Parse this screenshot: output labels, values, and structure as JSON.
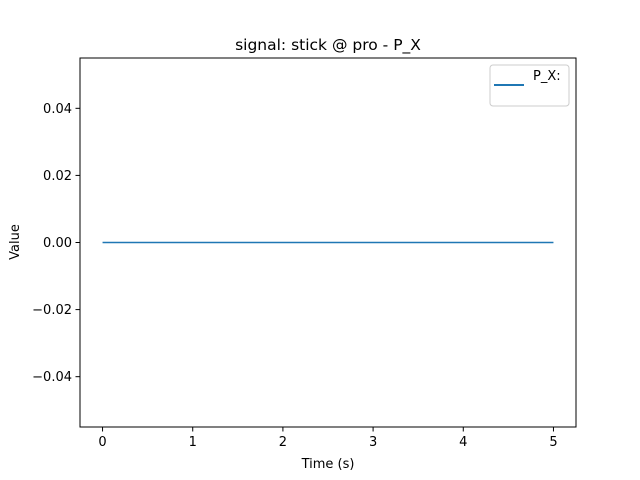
{
  "chart_data": {
    "type": "line",
    "title": "signal: stick @ pro - P_X",
    "xlabel": "Time (s)",
    "ylabel": "Value",
    "xlim": [
      -0.25,
      5.25
    ],
    "ylim": [
      -0.055,
      0.055
    ],
    "xticks": [
      0,
      1,
      2,
      3,
      4,
      5
    ],
    "xtick_labels": [
      "0",
      "1",
      "2",
      "3",
      "4",
      "5"
    ],
    "yticks": [
      -0.04,
      -0.02,
      0.0,
      0.02,
      0.04
    ],
    "ytick_labels": [
      "−0.04",
      "−0.02",
      "0.00",
      "0.02",
      "0.04"
    ],
    "grid": false,
    "legend_position": "top-right",
    "series": [
      {
        "name": "P_X:",
        "color": "#1f77b4",
        "x": [
          0,
          5
        ],
        "y": [
          0,
          0
        ]
      }
    ]
  }
}
